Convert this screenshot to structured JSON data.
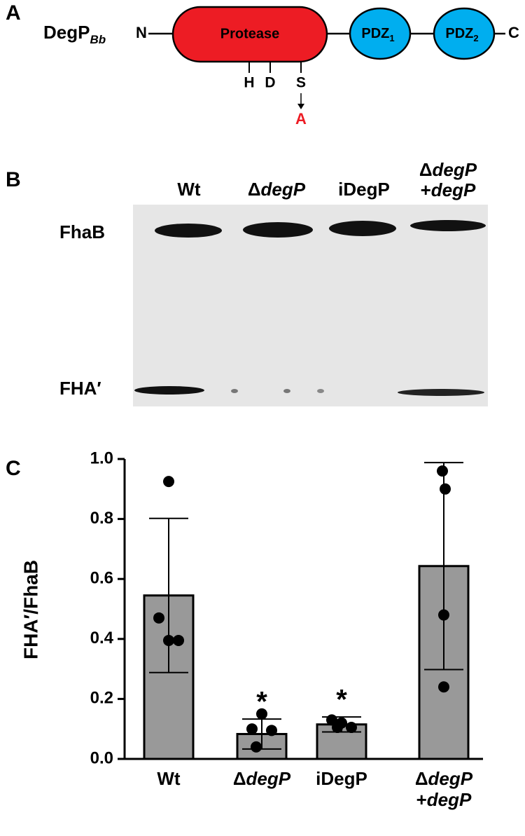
{
  "panel_a": {
    "label": "A",
    "protein": "DegP",
    "subscript": "Bb",
    "n_term": "N",
    "c_term": "C",
    "domains": [
      {
        "name": "Protease"
      },
      {
        "name": "PDZ",
        "sub": "1"
      },
      {
        "name": "PDZ",
        "sub": "2"
      }
    ],
    "residues": [
      "H",
      "D",
      "S"
    ],
    "mutation": "A"
  },
  "panel_b": {
    "label": "B",
    "lanes": [
      {
        "text": "Wt"
      },
      {
        "delta": "Δ",
        "gene": "degP"
      },
      {
        "text": "iDegP"
      },
      {
        "delta": "Δ",
        "gene": "degP",
        "plus": "+",
        "gene2": "degP"
      }
    ],
    "bands": [
      "FhaB",
      "FHA′"
    ]
  },
  "chart_data": {
    "type": "bar",
    "panel_label": "C",
    "y_label": "FHA′/FhaB",
    "categories": [
      "Wt",
      "ΔdegP",
      "iDegP",
      "ΔdegP +degP"
    ],
    "values": [
      0.545,
      0.083,
      0.115,
      0.643
    ],
    "errors": [
      0.257,
      0.05,
      0.025,
      0.345
    ],
    "points": [
      [
        0.925,
        0.47,
        0.395,
        0.395
      ],
      [
        0.15,
        0.1,
        0.095,
        0.04
      ],
      [
        0.13,
        0.12,
        0.105,
        0.105
      ],
      [
        0.96,
        0.9,
        0.48,
        0.24
      ]
    ],
    "significance": [
      null,
      "*",
      "*",
      null
    ],
    "color": "#999999",
    "point_color": "#000000",
    "ylim": [
      0,
      1.0
    ],
    "yticks": [
      {
        "value": 0,
        "label": "0.0"
      },
      {
        "value": 0.2,
        "label": "0.2"
      },
      {
        "value": 0.4,
        "label": "0.4"
      },
      {
        "value": 0.6,
        "label": "0.6"
      },
      {
        "value": 0.8,
        "label": "0.8"
      },
      {
        "value": 1,
        "label": "1.0"
      }
    ],
    "grid": false
  }
}
